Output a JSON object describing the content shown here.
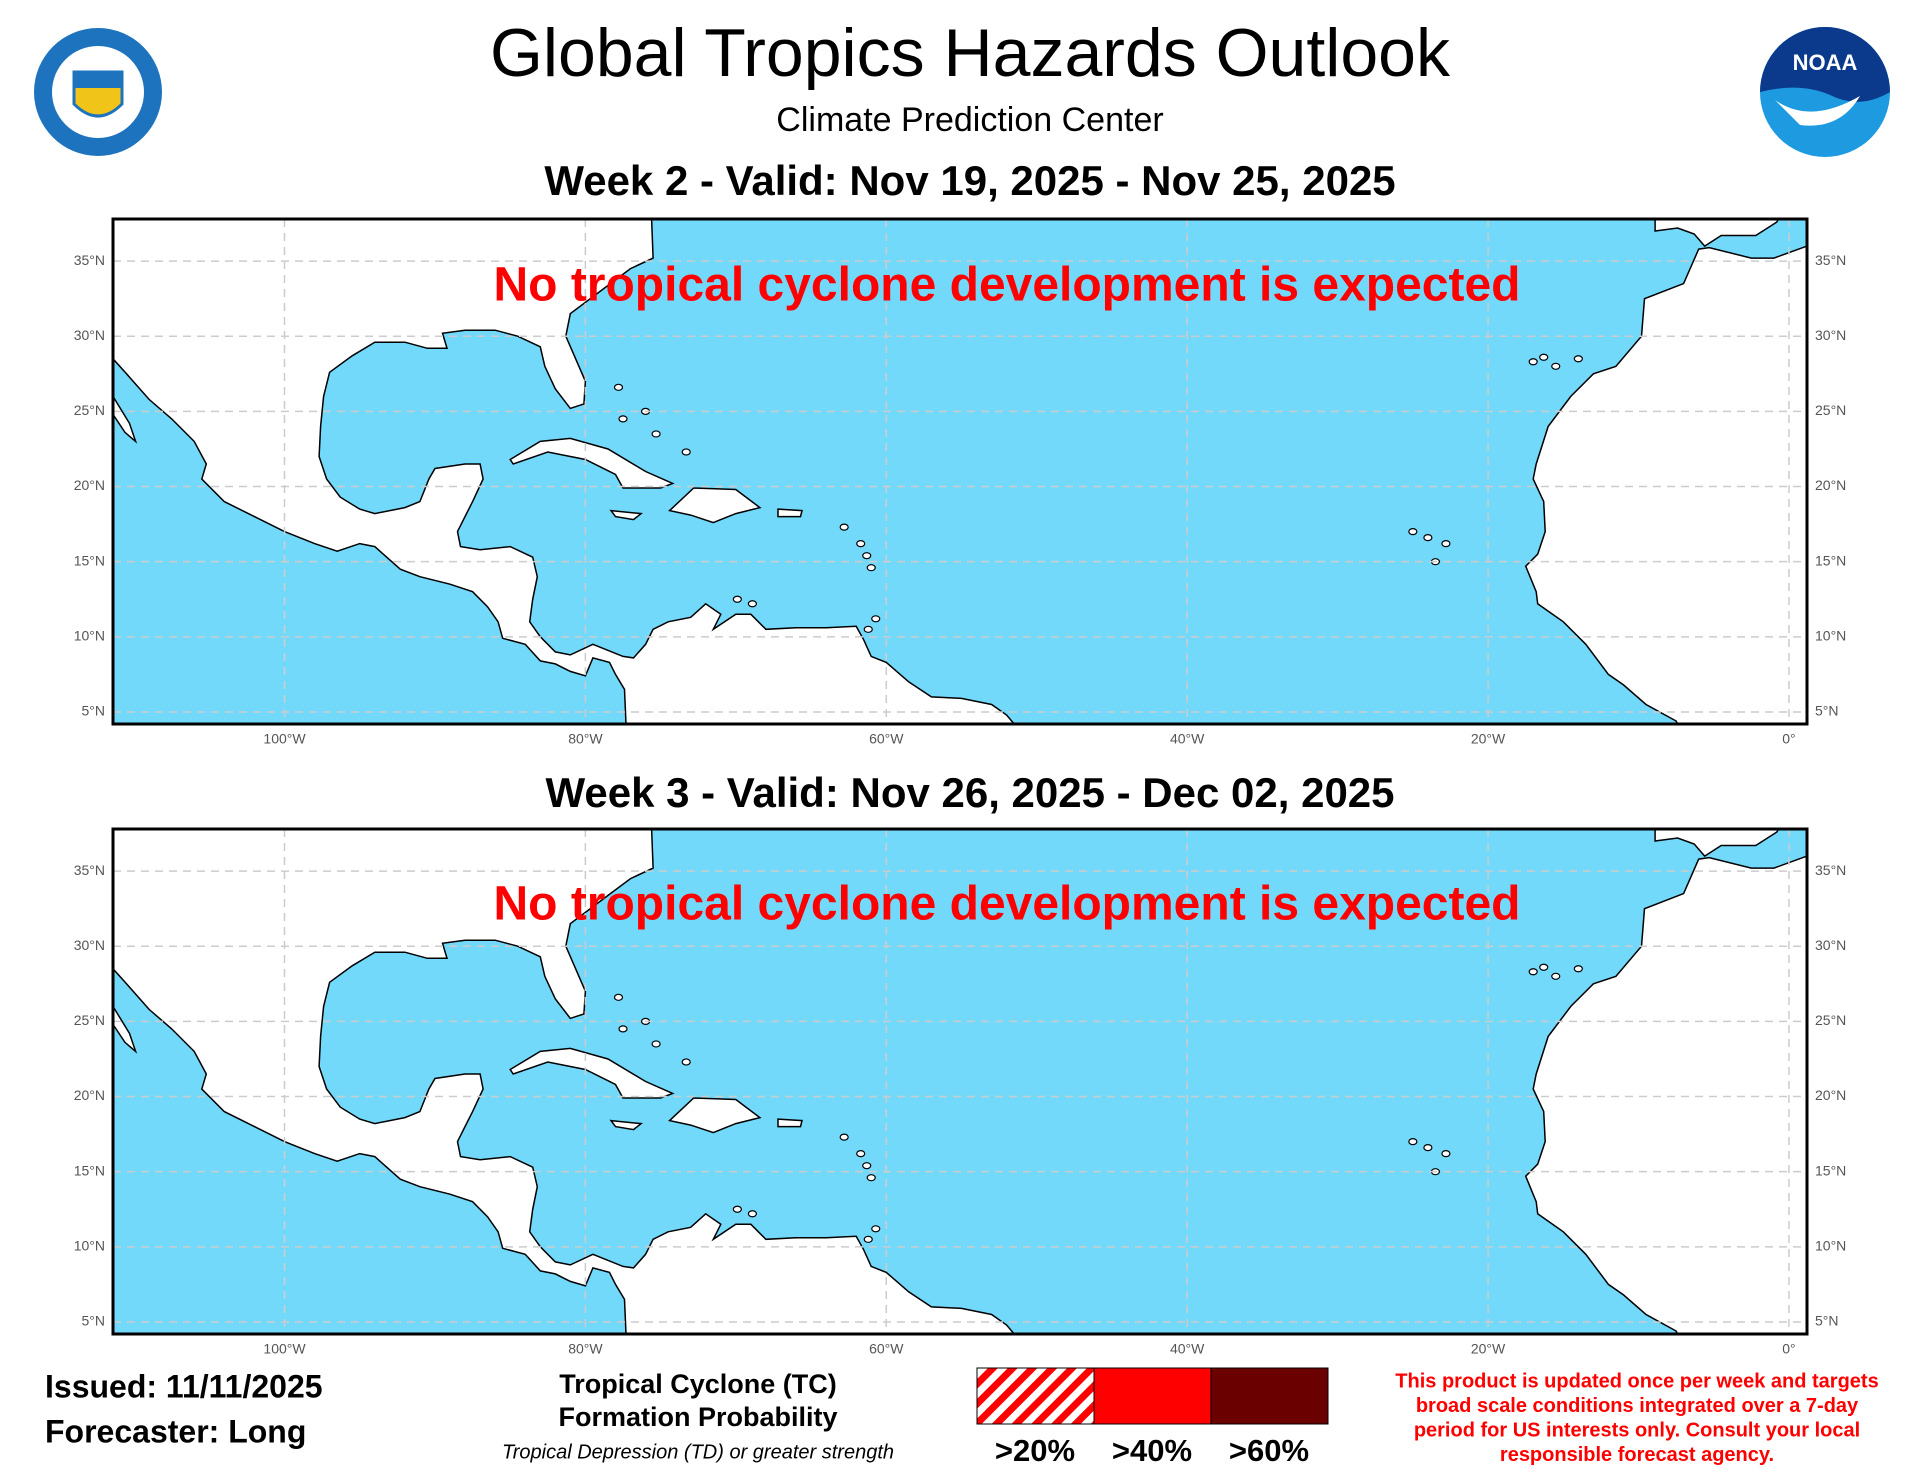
{
  "header": {
    "title": "Global Tropics Hazards Outlook",
    "subtitle": "Climate Prediction Center"
  },
  "logos": {
    "noaa": "NOAA"
  },
  "panels": [
    {
      "title": "Week 2 - Valid: Nov 19, 2025 - Nov 25, 2025",
      "message": "No tropical cyclone development is expected"
    },
    {
      "title": "Week 3 - Valid: Nov 26, 2025 - Dec 02, 2025",
      "message": "No tropical cyclone development is expected"
    }
  ],
  "map": {
    "lon_ticks": [
      {
        "value": -100,
        "label": "100°W"
      },
      {
        "value": -80,
        "label": "80°W"
      },
      {
        "value": -60,
        "label": "60°W"
      },
      {
        "value": -40,
        "label": "40°W"
      },
      {
        "value": -20,
        "label": "20°W"
      },
      {
        "value": 0,
        "label": "0°"
      }
    ],
    "lat_ticks": [
      {
        "value": 5,
        "label": "5°N"
      },
      {
        "value": 10,
        "label": "10°N"
      },
      {
        "value": 15,
        "label": "15°N"
      },
      {
        "value": 20,
        "label": "20°N"
      },
      {
        "value": 25,
        "label": "25°N"
      },
      {
        "value": 30,
        "label": "30°N"
      },
      {
        "value": 35,
        "label": "35°N"
      }
    ]
  },
  "footer": {
    "issued": "Issued: 11/11/2025",
    "forecaster": "Forecaster: Long"
  },
  "legend": {
    "title_lines": [
      "Tropical Cyclone (TC)",
      "Formation Probability"
    ],
    "note": "Tropical Depression (TD) or greater strength",
    "items": [
      {
        "label": ">20%",
        "color": "#ff0000",
        "hatched": true
      },
      {
        "label": ">40%",
        "color": "#ff0000",
        "hatched": false
      },
      {
        "label": ">60%",
        "color": "#6b0000",
        "hatched": false
      }
    ]
  },
  "disclaimer": [
    "This product is updated once per week and targets",
    "broad scale conditions integrated over a 7-day",
    "period for US interests only. Consult your local",
    "responsible forecast agency."
  ]
}
